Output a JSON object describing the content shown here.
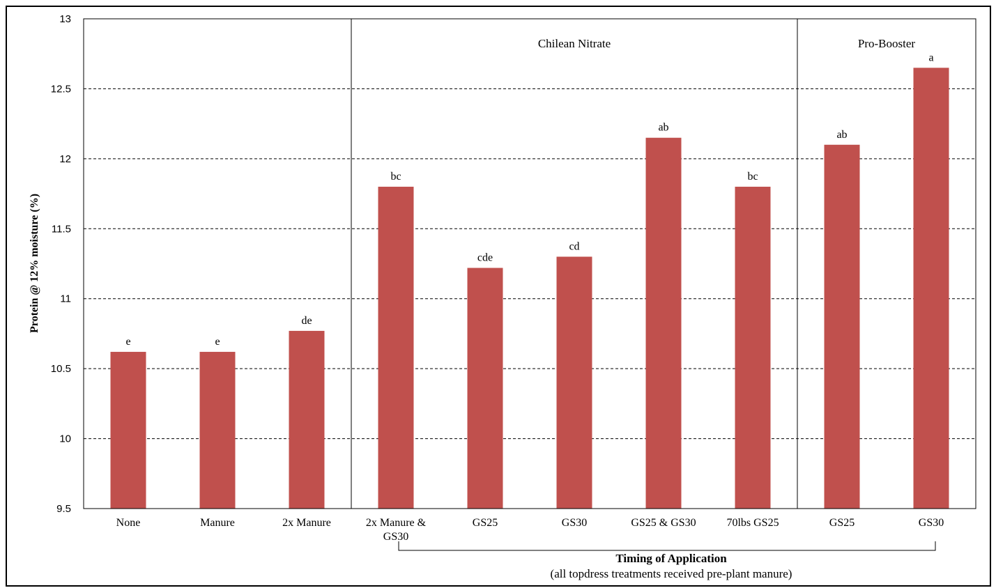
{
  "chart_data": {
    "type": "bar",
    "ylabel": "Protein @ 12% moisture (%)",
    "ylim": [
      9.5,
      13
    ],
    "yticks": [
      "9.5",
      "10",
      "10.5",
      "11",
      "11.5",
      "12",
      "12.5",
      "13"
    ],
    "grid": "horizontal dashed",
    "bar_color": "#c0504d",
    "categories": [
      "None",
      "Manure",
      "2x Manure",
      "2x Manure & GS30",
      "GS25",
      "GS30",
      "GS25 & GS30",
      "70lbs GS25",
      "GS25",
      "GS30"
    ],
    "category_lines": [
      [
        "None"
      ],
      [
        "Manure"
      ],
      [
        "2x Manure"
      ],
      [
        "2x Manure &",
        "GS30"
      ],
      [
        "GS25"
      ],
      [
        "GS30"
      ],
      [
        "GS25 & GS30"
      ],
      [
        "70lbs GS25"
      ],
      [
        "GS25"
      ],
      [
        "GS30"
      ]
    ],
    "values": [
      10.62,
      10.62,
      10.77,
      11.8,
      11.22,
      11.3,
      12.15,
      11.8,
      12.1,
      12.65
    ],
    "significance_letters": [
      "e",
      "e",
      "de",
      "bc",
      "cde",
      "cd",
      "ab",
      "bc",
      "ab",
      "a"
    ],
    "groups": [
      {
        "label": "Chilean Nitrate",
        "start": 3,
        "end": 7
      },
      {
        "label": "Pro-Booster",
        "start": 8,
        "end": 9
      }
    ],
    "bracket": {
      "title": "Timing of Application",
      "subtitle": "(all topdress treatments received pre-plant manure)",
      "start": 3,
      "end": 9
    }
  }
}
